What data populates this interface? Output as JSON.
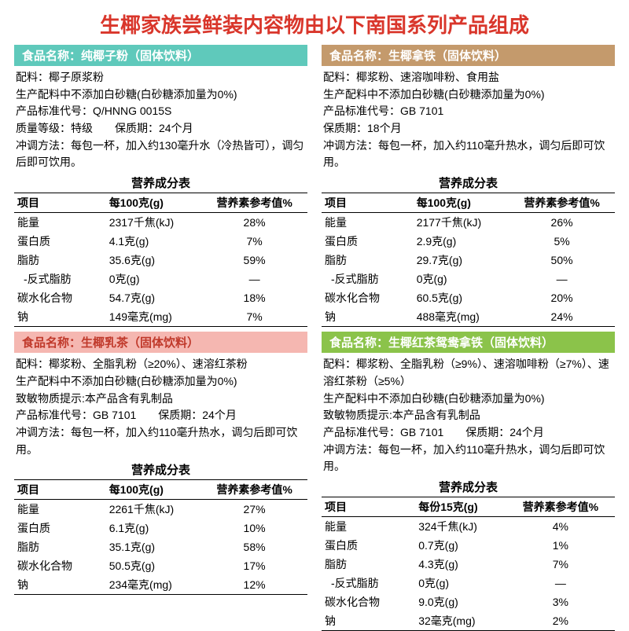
{
  "mainTitle": "生椰家族尝鲜装内容物由以下南国系列产品组成",
  "mainTitleColor": "#d9362b",
  "products": [
    {
      "barBg": "#5fc9bb",
      "barColor": "#ffffff",
      "name": "食品名称：纯椰子粉（固体饮料）",
      "info": [
        "配料：椰子原浆粉",
        "生产配料中不添加白砂糖(白砂糖添加量为0%)",
        "产品标准代号：Q/HNNG 0015S",
        "质量等级：特级　　保质期：24个月",
        "冲调方法：每包一杯，加入约130毫升水（冷热皆可），调匀后即可饮用。"
      ],
      "nutTitle": "营养成分表",
      "headers": [
        "项目",
        "每100克(g)",
        "营养素参考值%"
      ],
      "rows": [
        [
          "能量",
          "2317千焦(kJ)",
          "28%"
        ],
        [
          "蛋白质",
          "4.1克(g)",
          "7%"
        ],
        [
          "脂肪",
          "35.6克(g)",
          "59%"
        ],
        [
          "-反式脂肪",
          "0克(g)",
          "—",
          true
        ],
        [
          "碳水化合物",
          "54.7克(g)",
          "18%"
        ],
        [
          "钠",
          "149毫克(mg)",
          "7%"
        ]
      ]
    },
    {
      "barBg": "#c49a6c",
      "barColor": "#ffffff",
      "name": "食品名称：生椰拿铁（固体饮料）",
      "info": [
        "配料：椰浆粉、速溶咖啡粉、食用盐",
        "生产配料中不添加白砂糖(白砂糖添加量为0%)",
        "产品标准代号：GB 7101",
        "保质期：18个月",
        "冲调方法：每包一杯，加入约110毫升热水，调匀后即可饮用。"
      ],
      "nutTitle": "营养成分表",
      "headers": [
        "项目",
        "每100克(g)",
        "营养素参考值%"
      ],
      "rows": [
        [
          "能量",
          "2177千焦(kJ)",
          "26%"
        ],
        [
          "蛋白质",
          "2.9克(g)",
          "5%"
        ],
        [
          "脂肪",
          "29.7克(g)",
          "50%"
        ],
        [
          "-反式脂肪",
          "0克(g)",
          "—",
          true
        ],
        [
          "碳水化合物",
          "60.5克(g)",
          "20%"
        ],
        [
          "钠",
          "488毫克(mg)",
          "24%"
        ]
      ]
    },
    {
      "barBg": "#f5b7b1",
      "barColor": "#c0392b",
      "name": "食品名称：生椰乳茶（固体饮料）",
      "info": [
        "配料：椰浆粉、全脂乳粉（≥20%）、速溶红茶粉",
        "生产配料中不添加白砂糖(白砂糖添加量为0%)",
        "致敏物质提示:本产品含有乳制品",
        "产品标准代号：GB 7101　　保质期：24个月",
        "冲调方法：每包一杯，加入约110毫升热水，调匀后即可饮用。"
      ],
      "nutTitle": "营养成分表",
      "headers": [
        "项目",
        "每100克(g)",
        "营养素参考值%"
      ],
      "rows": [
        [
          "能量",
          "2261千焦(kJ)",
          "27%"
        ],
        [
          "蛋白质",
          "6.1克(g)",
          "10%"
        ],
        [
          "脂肪",
          "35.1克(g)",
          "58%"
        ],
        [
          "碳水化合物",
          "50.5克(g)",
          "17%"
        ],
        [
          "钠",
          "234毫克(mg)",
          "12%"
        ]
      ]
    },
    {
      "barBg": "#8bc34a",
      "barColor": "#ffffff",
      "name": "食品名称：生椰红茶鸳鸯拿铁（固体饮料）",
      "info": [
        "配料：椰浆粉、全脂乳粉（≥9%）、速溶咖啡粉（≥7%）、速溶红茶粉（≥5%）",
        "生产配料中不添加白砂糖(白砂糖添加量为0%)",
        "致敏物质提示:本产品含有乳制品",
        "产品标准代号：GB 7101　　保质期：24个月",
        "冲调方法：每包一杯，加入约110毫升热水，调匀后即可饮用。"
      ],
      "nutTitle": "营养成分表",
      "headers": [
        "项目",
        "每份15克(g)",
        "营养素参考值%"
      ],
      "rows": [
        [
          "能量",
          "324千焦(kJ)",
          "4%"
        ],
        [
          "蛋白质",
          "0.7克(g)",
          "1%"
        ],
        [
          "脂肪",
          "4.3克(g)",
          "7%"
        ],
        [
          "-反式脂肪",
          "0克(g)",
          "—",
          true
        ],
        [
          "碳水化合物",
          "9.0克(g)",
          "3%"
        ],
        [
          "钠",
          "32毫克(mg)",
          "2%"
        ]
      ]
    }
  ]
}
